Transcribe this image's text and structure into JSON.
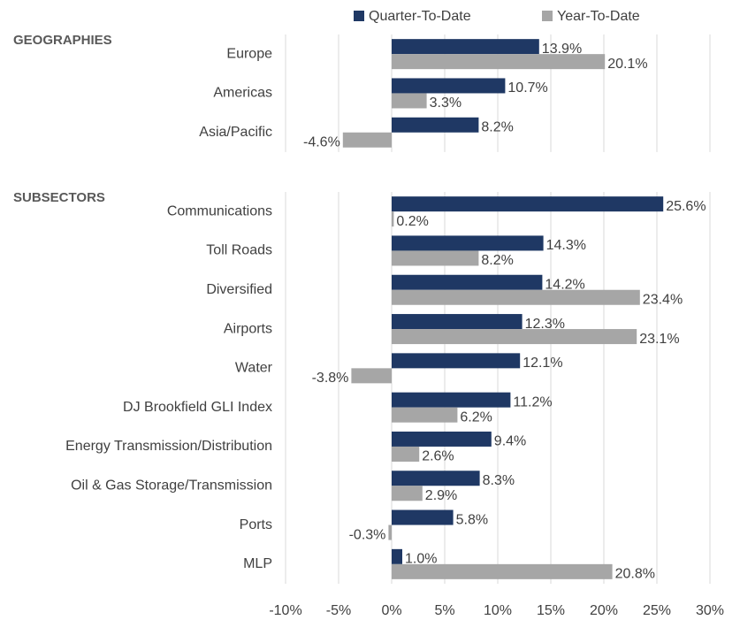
{
  "chart_data": {
    "type": "bar",
    "orientation": "horizontal",
    "series": [
      {
        "name": "Quarter-To-Date",
        "color": "#1f3864"
      },
      {
        "name": "Year-To-Date",
        "color": "#a6a6a6"
      }
    ],
    "panels": [
      {
        "title": "GEOGRAPHIES",
        "categories": [
          "Europe",
          "Americas",
          "Asia/Pacific"
        ],
        "values": [
          [
            13.9,
            10.7,
            8.2
          ],
          [
            20.1,
            3.3,
            -4.6
          ]
        ],
        "value_labels": [
          [
            "13.9%",
            "10.7%",
            "8.2%"
          ],
          [
            "20.1%",
            "3.3%",
            "-4.6%"
          ]
        ]
      },
      {
        "title": "SUBSECTORS",
        "categories": [
          "Communications",
          "Toll Roads",
          "Diversified",
          "Airports",
          "Water",
          "DJ Brookfield GLI Index",
          "Energy Transmission/Distribution",
          "Oil & Gas Storage/Transmission",
          "Ports",
          "MLP"
        ],
        "values": [
          [
            25.6,
            14.3,
            14.2,
            12.3,
            12.1,
            11.2,
            9.4,
            8.3,
            5.8,
            1.0
          ],
          [
            0.2,
            8.2,
            23.4,
            23.1,
            -3.8,
            6.2,
            2.6,
            2.9,
            -0.3,
            20.8
          ]
        ],
        "value_labels": [
          [
            "25.6%",
            "14.3%",
            "14.2%",
            "12.3%",
            "12.1%",
            "11.2%",
            "9.4%",
            "8.3%",
            "5.8%",
            "1.0%"
          ],
          [
            "0.2%",
            "8.2%",
            "23.4%",
            "23.1%",
            "-3.8%",
            "6.2%",
            "2.6%",
            "2.9%",
            "-0.3%",
            "20.8%"
          ]
        ]
      }
    ],
    "xlim": [
      -10,
      30
    ],
    "xticks": [
      {
        "value": -10,
        "label": "-10%"
      },
      {
        "value": -5,
        "label": "-5%"
      },
      {
        "value": 0,
        "label": "0%"
      },
      {
        "value": 5,
        "label": "5%"
      },
      {
        "value": 10,
        "label": "10%"
      },
      {
        "value": 15,
        "label": "15%"
      },
      {
        "value": 20,
        "label": "20%"
      },
      {
        "value": 25,
        "label": "25%"
      },
      {
        "value": 30,
        "label": "30%"
      }
    ],
    "grid": true,
    "legend": "top"
  }
}
